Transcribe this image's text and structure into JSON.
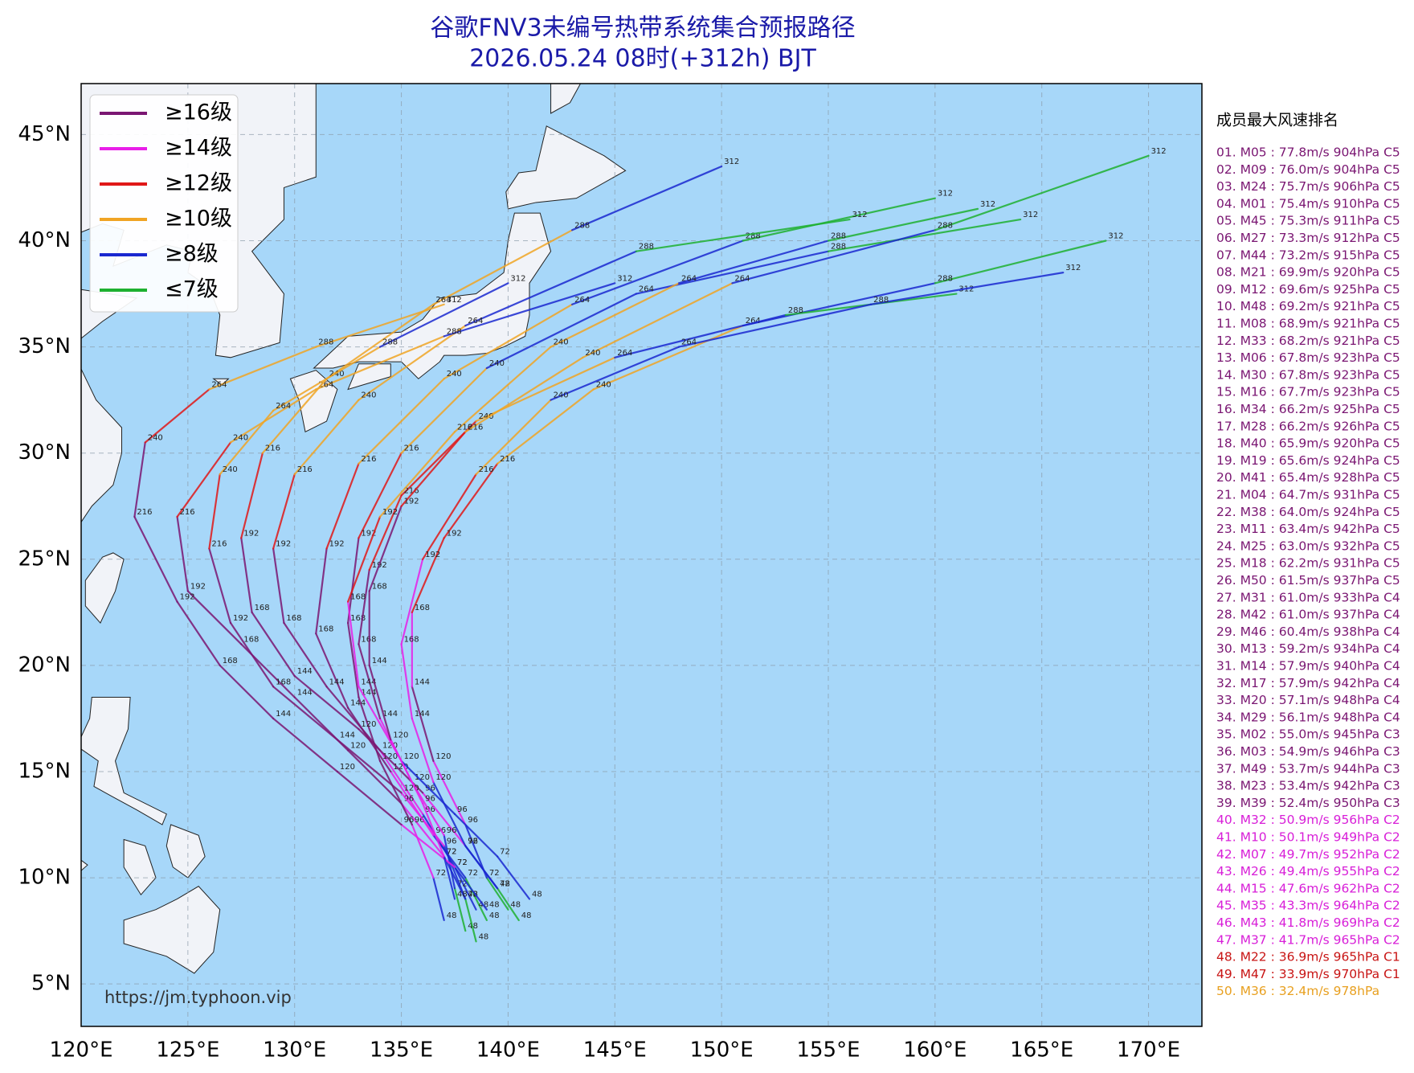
{
  "title": "谷歌FNV3未编号热带系统集合预报路径",
  "subtitle": "2026.05.24 08时(+312h) BJT",
  "source": "https://jm.typhoon.vip",
  "map": {
    "xlim": [
      120,
      172.5
    ],
    "ylim": [
      3,
      47.4
    ],
    "xticks": [
      {
        "value": 120,
        "label": "120°E"
      },
      {
        "value": 125,
        "label": "125°E"
      },
      {
        "value": 130,
        "label": "130°E"
      },
      {
        "value": 135,
        "label": "135°E"
      },
      {
        "value": 140,
        "label": "140°E"
      },
      {
        "value": 145,
        "label": "145°E"
      },
      {
        "value": 150,
        "label": "150°E"
      },
      {
        "value": 155,
        "label": "155°E"
      },
      {
        "value": 160,
        "label": "160°E"
      },
      {
        "value": 165,
        "label": "165°E"
      },
      {
        "value": 170,
        "label": "170°E"
      }
    ],
    "yticks": [
      {
        "value": 5,
        "label": "5°N"
      },
      {
        "value": 10,
        "label": "10°N"
      },
      {
        "value": 15,
        "label": "15°N"
      },
      {
        "value": 20,
        "label": "20°N"
      },
      {
        "value": 25,
        "label": "25°N"
      },
      {
        "value": 30,
        "label": "30°N"
      },
      {
        "value": 35,
        "label": "35°N"
      },
      {
        "value": 40,
        "label": "40°N"
      },
      {
        "value": 45,
        "label": "45°N"
      }
    ],
    "grid": true
  },
  "legend": [
    {
      "name": "≥16级",
      "color": "#7a1672"
    },
    {
      "name": "≥14级",
      "color": "#e81ee8"
    },
    {
      "name": "≥12级",
      "color": "#e01818"
    },
    {
      "name": "≥10级",
      "color": "#f0a424"
    },
    {
      "name": "≥8级",
      "color": "#1a28d0"
    },
    {
      "name": "≤7级",
      "color": "#1eb030"
    }
  ],
  "tracks": [
    {
      "lon": [
        139,
        138,
        136.5,
        134.5,
        132.5,
        131,
        131.5,
        133,
        137,
        143,
        151,
        160
      ],
      "lat": [
        8,
        10,
        12,
        15,
        18,
        21.5,
        25.5,
        29.5,
        33.5,
        37,
        40,
        42
      ],
      "level": [
        5,
        5,
        4,
        1,
        0,
        0,
        0,
        2,
        3,
        3,
        4,
        5
      ],
      "hours": [
        48,
        72,
        96,
        120,
        144,
        168,
        192,
        216,
        240,
        264,
        288,
        312
      ]
    },
    {
      "lon": [
        138.5,
        137.5,
        136,
        134,
        131.5,
        129.5,
        129,
        130,
        133,
        138,
        146,
        156
      ],
      "lat": [
        8.5,
        10.5,
        13,
        16,
        19,
        22,
        25.5,
        29,
        32.5,
        36,
        39.5,
        41
      ],
      "level": [
        5,
        4,
        4,
        1,
        0,
        0,
        0,
        2,
        3,
        3,
        4,
        5
      ],
      "hours": [
        48,
        72,
        96,
        120,
        144,
        168,
        192,
        216,
        240,
        264,
        288,
        312
      ]
    },
    {
      "lon": [
        138,
        137,
        135,
        132.5,
        130,
        127.5,
        125,
        124.5,
        127,
        131,
        137,
        145
      ],
      "lat": [
        9,
        11,
        13.5,
        16,
        18.5,
        21,
        23.5,
        27,
        30.5,
        33,
        35.5,
        38
      ],
      "level": [
        5,
        4,
        1,
        0,
        0,
        0,
        0,
        0,
        2,
        3,
        3,
        4
      ],
      "hours": [
        48,
        72,
        96,
        120,
        144,
        168,
        192,
        216,
        240,
        264,
        288,
        312
      ]
    },
    {
      "lon": [
        140,
        139,
        138,
        136.5,
        135.5,
        135.5,
        137,
        139.5,
        144,
        151,
        160,
        168
      ],
      "lat": [
        8.5,
        10,
        12.5,
        15.5,
        19,
        22.5,
        26,
        29.5,
        33,
        36,
        38,
        40
      ],
      "level": [
        5,
        5,
        4,
        1,
        0,
        1,
        2,
        2,
        3,
        3,
        4,
        5
      ],
      "hours": [
        48,
        72,
        96,
        120,
        144,
        168,
        192,
        216,
        240,
        264,
        288,
        312
      ]
    },
    {
      "lon": [
        137,
        136.5,
        135.5,
        134,
        133,
        132.5,
        133,
        135,
        139,
        146,
        155,
        164
      ],
      "lat": [
        8,
        10,
        12.5,
        15.5,
        18.5,
        22,
        26,
        30,
        34,
        37.5,
        39.5,
        41
      ],
      "level": [
        5,
        4,
        1,
        0,
        0,
        0,
        0,
        2,
        3,
        4,
        4,
        5
      ],
      "hours": [
        48,
        72,
        96,
        120,
        144,
        168,
        192,
        216,
        240,
        264,
        288,
        312
      ]
    },
    {
      "lon": [
        139.5,
        138,
        136,
        133,
        130,
        128,
        127.5,
        128.5,
        131.5,
        136.5,
        143,
        150
      ],
      "lat": [
        9.5,
        11.5,
        14,
        17,
        19.5,
        22.5,
        26,
        30,
        33.5,
        37,
        40.5,
        43.5
      ],
      "level": [
        5,
        4,
        1,
        0,
        0,
        0,
        0,
        2,
        3,
        3,
        3,
        4
      ],
      "hours": [
        48,
        72,
        96,
        120,
        144,
        168,
        192,
        216,
        240,
        264,
        288,
        312
      ]
    },
    {
      "lon": [
        138,
        137.5,
        137,
        135.5,
        134,
        133,
        133.5,
        135,
        138.5,
        145,
        153,
        161
      ],
      "lat": [
        7.5,
        9.5,
        12,
        14.5,
        17.5,
        21,
        24.5,
        28,
        31.5,
        34.5,
        36.5,
        37.5
      ],
      "level": [
        5,
        5,
        4,
        1,
        1,
        0,
        0,
        2,
        2,
        3,
        4,
        5
      ],
      "hours": [
        48,
        72,
        96,
        120,
        144,
        168,
        192,
        216,
        240,
        264,
        288,
        312
      ]
    },
    {
      "lon": [
        141,
        139.5,
        137.5,
        135,
        133,
        132.5,
        134,
        137.5,
        142,
        148,
        155,
        162
      ],
      "lat": [
        9,
        11,
        13,
        15.5,
        19,
        23,
        27,
        31,
        35,
        38,
        40,
        41.5
      ],
      "level": [
        5,
        4,
        4,
        4,
        1,
        1,
        2,
        3,
        3,
        3,
        4,
        5
      ],
      "hours": [
        48,
        72,
        96,
        120,
        144,
        168,
        192,
        216,
        240,
        264,
        288,
        312
      ]
    },
    {
      "lon": [
        138.5,
        138,
        137,
        135,
        132,
        129,
        127,
        126,
        126.5,
        129,
        134,
        140
      ],
      "lat": [
        7,
        9,
        11.5,
        14,
        16.5,
        19,
        22,
        25.5,
        29,
        32,
        35,
        38
      ],
      "level": [
        5,
        5,
        4,
        1,
        0,
        0,
        0,
        0,
        2,
        3,
        3,
        4
      ],
      "hours": [
        48,
        72,
        96,
        120,
        144,
        168,
        192,
        216,
        240,
        264,
        288,
        312
      ]
    },
    {
      "lon": [
        140.5,
        139.5,
        138,
        136.5,
        135.5,
        135,
        136,
        138.5,
        142,
        148,
        157,
        166
      ],
      "lat": [
        8,
        9.5,
        11.5,
        14.5,
        17.5,
        21,
        25,
        29,
        32.5,
        35,
        37,
        38.5
      ],
      "level": [
        5,
        5,
        4,
        4,
        1,
        1,
        1,
        2,
        3,
        4,
        4,
        4
      ],
      "hours": [
        48,
        72,
        96,
        120,
        144,
        168,
        192,
        216,
        240,
        264,
        288,
        312
      ]
    },
    {
      "lon": [
        139,
        137.5,
        135,
        132,
        129,
        126.5,
        124.5,
        122.5,
        123,
        126,
        131,
        137
      ],
      "lat": [
        8.5,
        10.5,
        12.5,
        15,
        17.5,
        20,
        23,
        27,
        30.5,
        33,
        35,
        37
      ],
      "level": [
        5,
        4,
        1,
        0,
        0,
        0,
        0,
        0,
        0,
        2,
        3,
        3
      ],
      "hours": [
        48,
        72,
        96,
        120,
        144,
        168,
        192,
        216,
        240,
        264,
        288,
        312
      ]
    },
    {
      "lon": [
        137.5,
        137,
        136,
        134.5,
        133.5,
        133.5,
        135,
        138,
        143.5,
        150.5,
        160,
        170
      ],
      "lat": [
        9,
        11,
        13.5,
        16.5,
        20,
        23.5,
        27.5,
        31,
        34.5,
        38,
        40.5,
        44
      ],
      "level": [
        5,
        4,
        1,
        1,
        0,
        0,
        0,
        2,
        3,
        3,
        4,
        5
      ],
      "hours": [
        48,
        72,
        96,
        120,
        144,
        168,
        192,
        216,
        240,
        264,
        288,
        312
      ]
    }
  ],
  "ranking": {
    "title": "成员最大风速排名",
    "entries": [
      {
        "text": "01. M05 : 77.8m/s 904hPa C5",
        "color": "#7a1672"
      },
      {
        "text": "02. M09 : 76.0m/s 904hPa C5",
        "color": "#7a1672"
      },
      {
        "text": "03. M24 : 75.7m/s 906hPa C5",
        "color": "#7a1672"
      },
      {
        "text": "04. M01 : 75.4m/s 910hPa C5",
        "color": "#7a1672"
      },
      {
        "text": "05. M45 : 75.3m/s 911hPa C5",
        "color": "#7a1672"
      },
      {
        "text": "06. M27 : 73.3m/s 912hPa C5",
        "color": "#7a1672"
      },
      {
        "text": "07. M44 : 73.2m/s 915hPa C5",
        "color": "#7a1672"
      },
      {
        "text": "08. M21 : 69.9m/s 920hPa C5",
        "color": "#7a1672"
      },
      {
        "text": "09. M12 : 69.6m/s 925hPa C5",
        "color": "#7a1672"
      },
      {
        "text": "10. M48 : 69.2m/s 921hPa C5",
        "color": "#7a1672"
      },
      {
        "text": "11. M08 : 68.9m/s 921hPa C5",
        "color": "#7a1672"
      },
      {
        "text": "12. M33 : 68.2m/s 921hPa C5",
        "color": "#7a1672"
      },
      {
        "text": "13. M06 : 67.8m/s 923hPa C5",
        "color": "#7a1672"
      },
      {
        "text": "14. M30 : 67.8m/s 923hPa C5",
        "color": "#7a1672"
      },
      {
        "text": "15. M16 : 67.7m/s 923hPa C5",
        "color": "#7a1672"
      },
      {
        "text": "16. M34 : 66.2m/s 925hPa C5",
        "color": "#7a1672"
      },
      {
        "text": "17. M28 : 66.2m/s 926hPa C5",
        "color": "#7a1672"
      },
      {
        "text": "18. M40 : 65.9m/s 920hPa C5",
        "color": "#7a1672"
      },
      {
        "text": "19. M19 : 65.6m/s 924hPa C5",
        "color": "#7a1672"
      },
      {
        "text": "20. M41 : 65.4m/s 928hPa C5",
        "color": "#7a1672"
      },
      {
        "text": "21. M04 : 64.7m/s 931hPa C5",
        "color": "#7a1672"
      },
      {
        "text": "22. M38 : 64.0m/s 924hPa C5",
        "color": "#7a1672"
      },
      {
        "text": "23. M11 : 63.4m/s 942hPa C5",
        "color": "#7a1672"
      },
      {
        "text": "24. M25 : 63.0m/s 932hPa C5",
        "color": "#7a1672"
      },
      {
        "text": "25. M18 : 62.2m/s 931hPa C5",
        "color": "#7a1672"
      },
      {
        "text": "26. M50 : 61.5m/s 937hPa C5",
        "color": "#7a1672"
      },
      {
        "text": "27. M31 : 61.0m/s 933hPa C4",
        "color": "#7a1672"
      },
      {
        "text": "28. M42 : 61.0m/s 937hPa C4",
        "color": "#7a1672"
      },
      {
        "text": "29. M46 : 60.4m/s 938hPa C4",
        "color": "#7a1672"
      },
      {
        "text": "30. M13 : 59.2m/s 934hPa C4",
        "color": "#7a1672"
      },
      {
        "text": "31. M14 : 57.9m/s 940hPa C4",
        "color": "#7a1672"
      },
      {
        "text": "32. M17 : 57.9m/s 942hPa C4",
        "color": "#7a1672"
      },
      {
        "text": "33. M20 : 57.1m/s 948hPa C4",
        "color": "#7a1672"
      },
      {
        "text": "34. M29 : 56.1m/s 948hPa C4",
        "color": "#7a1672"
      },
      {
        "text": "35. M02 : 55.0m/s 945hPa C3",
        "color": "#7a1672"
      },
      {
        "text": "36. M03 : 54.9m/s 946hPa C3",
        "color": "#7a1672"
      },
      {
        "text": "37. M49 : 53.7m/s 944hPa C3",
        "color": "#7a1672"
      },
      {
        "text": "38. M23 : 53.4m/s 942hPa C3",
        "color": "#7a1672"
      },
      {
        "text": "39. M39 : 52.4m/s 950hPa C3",
        "color": "#7a1672"
      },
      {
        "text": "40. M32 : 50.9m/s 956hPa C2",
        "color": "#d81ed8"
      },
      {
        "text": "41. M10 : 50.1m/s 949hPa C2",
        "color": "#d81ed8"
      },
      {
        "text": "42. M07 : 49.7m/s 952hPa C2",
        "color": "#d81ed8"
      },
      {
        "text": "43. M26 : 49.4m/s 955hPa C2",
        "color": "#d81ed8"
      },
      {
        "text": "44. M15 : 47.6m/s 962hPa C2",
        "color": "#d81ed8"
      },
      {
        "text": "45. M35 : 43.3m/s 964hPa C2",
        "color": "#d81ed8"
      },
      {
        "text": "46. M43 : 41.8m/s 969hPa C2",
        "color": "#d81ed8"
      },
      {
        "text": "47. M37 : 41.7m/s 965hPa C2",
        "color": "#d81ed8"
      },
      {
        "text": "48. M22 : 36.9m/s 965hPa C1",
        "color": "#c81414"
      },
      {
        "text": "49. M47 : 33.9m/s 970hPa C1",
        "color": "#c81414"
      },
      {
        "text": "50. M36 : 32.4m/s 978hPa",
        "color": "#e8a020"
      }
    ]
  }
}
